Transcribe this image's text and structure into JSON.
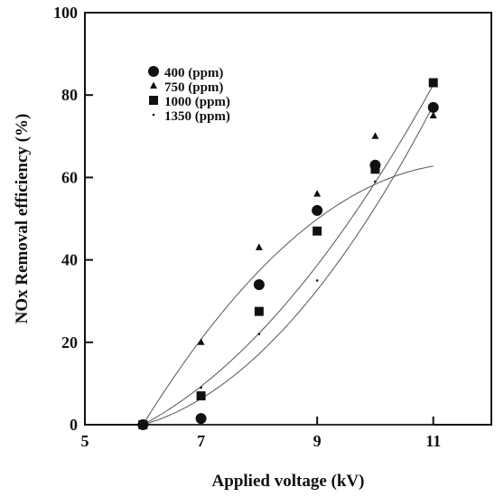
{
  "chart_data": {
    "type": "scatter",
    "title": "",
    "xlabel": "Applied voltage (kV)",
    "ylabel": "NOx Removal efficiency (%)",
    "xlim": [
      5,
      12
    ],
    "ylim": [
      0,
      100
    ],
    "xticks": [
      "5",
      "7",
      "9",
      "11"
    ],
    "yticks": [
      "0",
      "20",
      "40",
      "60",
      "80",
      "100"
    ],
    "grid": false,
    "legend_position": "top-left",
    "series": [
      {
        "name": "400 (ppm)",
        "marker": "circle",
        "x": [
          6,
          7,
          8,
          9,
          10,
          11
        ],
        "y": [
          0,
          1.5,
          34,
          52,
          63,
          77
        ],
        "fit": [
          6,
          -11.7,
          2.28
        ]
      },
      {
        "name": "750 (ppm)",
        "marker": "triangle",
        "x": [
          6,
          7,
          8,
          9,
          10,
          11
        ],
        "y": [
          0,
          20,
          43,
          56,
          70,
          75
        ],
        "fit": [
          6,
          22.75,
          -2.04
        ]
      },
      {
        "name": "1000 (ppm)",
        "marker": "square",
        "x": [
          6,
          7,
          8,
          9,
          10,
          11
        ],
        "y": [
          0,
          7,
          27.5,
          47,
          62,
          83
        ],
        "fit": [
          6,
          7.5,
          1.8
        ]
      },
      {
        "name": "1350 (ppm)",
        "marker": "dot",
        "x": [
          6,
          7,
          8,
          9,
          10,
          11
        ],
        "y": [
          0,
          9,
          22,
          35,
          59,
          77
        ],
        "fit": [
          6,
          4.0,
          2.3
        ]
      }
    ]
  }
}
